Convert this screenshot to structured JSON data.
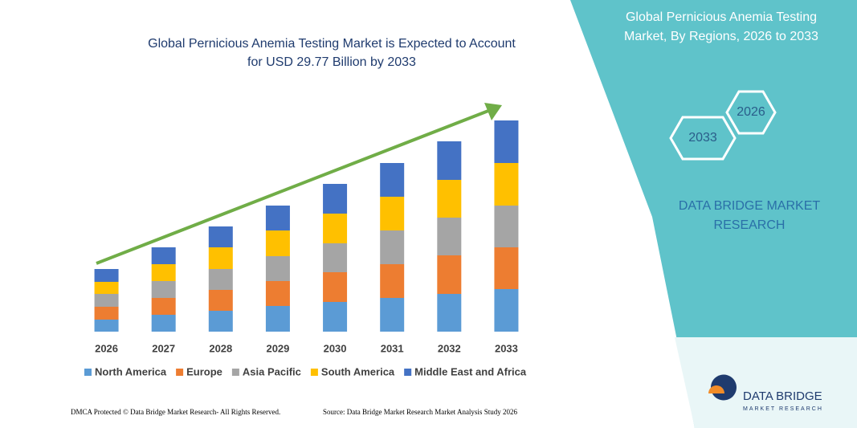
{
  "chart_data": {
    "type": "stacked_bar",
    "title": [
      "Global Pernicious Anemia Testing Market is Expected to Account",
      "for USD 29.77 Billion by 2033"
    ],
    "categories": [
      "2026",
      "2027",
      "2028",
      "2029",
      "2030",
      "2031",
      "2032",
      "2033"
    ],
    "series": [
      {
        "name": "North America",
        "color": "#5b9bd5",
        "values": [
          15,
          21,
          26,
          32,
          37,
          42,
          47,
          53
        ]
      },
      {
        "name": "Europe",
        "color": "#ed7d31",
        "values": [
          16,
          21,
          26,
          31,
          37,
          42,
          48,
          52
        ]
      },
      {
        "name": "Asia Pacific",
        "color": "#a5a5a5",
        "values": [
          16,
          21,
          26,
          31,
          36,
          42,
          47,
          52
        ]
      },
      {
        "name": "South America",
        "color": "#ffc000",
        "values": [
          15,
          21,
          27,
          32,
          37,
          42,
          47,
          53
        ]
      },
      {
        "name": "Middle East and Africa",
        "color": "#4472c4",
        "values": [
          16,
          21,
          26,
          31,
          37,
          42,
          48,
          53
        ]
      }
    ],
    "ylim": [
      0,
      265
    ]
  },
  "panel": {
    "title": [
      "Global Pernicious Anemia Testing",
      "Market, By Regions, 2026 to 2033"
    ],
    "hexagons": [
      "2026",
      "2033"
    ],
    "brand": [
      "DATA BRIDGE MARKET",
      "RESEARCH"
    ]
  },
  "logo": {
    "name": "DATA BRIDGE",
    "tagline": "MARKET RESEARCH"
  },
  "footer": {
    "left": "DMCA Protected © Data Bridge Market Research- All Rights Reserved.",
    "right": "Source: Data Bridge Market Research  Market Analysis Study 2026"
  }
}
